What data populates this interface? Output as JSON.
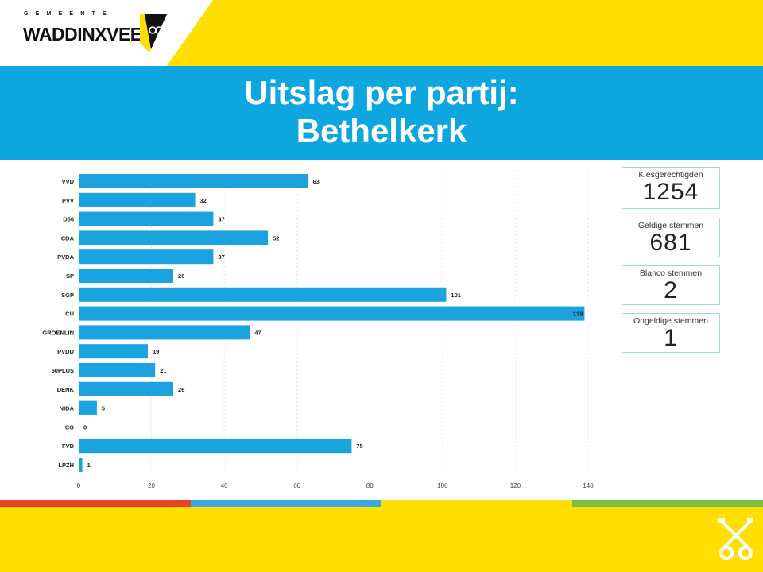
{
  "header": {
    "logo_top": "GEMEENTE",
    "logo_main": "WADDINXVEEN",
    "title_line1": "Uitslag per partij:",
    "title_line2": "Bethelkerk"
  },
  "colors": {
    "yellow": "#ffde00",
    "blue": "#0ea6df",
    "bar": "#1aa3de",
    "stripes": [
      "#e8412c",
      "#3aa7de",
      "#ffde00",
      "#79c142"
    ]
  },
  "stats": [
    {
      "label": "Kiesgerechtigden",
      "value": "1254"
    },
    {
      "label": "Geldige stemmen",
      "value": "681"
    },
    {
      "label": "Blanco stemmen",
      "value": "2"
    },
    {
      "label": "Ongeldige stemmen",
      "value": "1"
    }
  ],
  "chart_data": {
    "type": "bar",
    "orientation": "horizontal",
    "categories": [
      "VVD",
      "PVV",
      "D66",
      "CDA",
      "PVDA",
      "SP",
      "SGP",
      "CU",
      "GROENLIN",
      "PVDD",
      "50PLUS",
      "DENK",
      "NIDA",
      "CO",
      "FVD",
      "LPZH"
    ],
    "values": [
      63,
      32,
      37,
      52,
      37,
      26,
      101,
      139,
      47,
      19,
      21,
      26,
      5,
      0,
      75,
      1
    ],
    "xlim": [
      0,
      140
    ],
    "xticks": [
      0,
      20,
      40,
      60,
      80,
      100,
      120,
      140
    ],
    "grid": true,
    "data_labels": true
  }
}
